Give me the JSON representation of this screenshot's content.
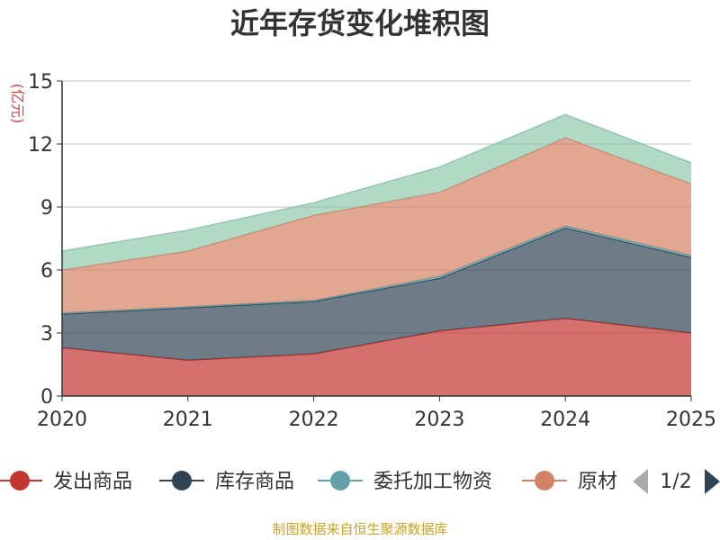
{
  "chart_data": {
    "type": "area",
    "stacked": true,
    "title": "近年存货变化堆积图",
    "unit": "亿元",
    "x": [
      "2020",
      "2021",
      "2022",
      "2023",
      "2024",
      "2025"
    ],
    "ylim": [
      0,
      15
    ],
    "yticks": [
      "0",
      "3",
      "6",
      "9",
      "12",
      "15"
    ],
    "grid": true,
    "legend_position": "bottom",
    "series": [
      {
        "name": "发出商品",
        "color": "#c23531",
        "values": [
          2.3,
          1.7,
          2.0,
          3.1,
          3.7,
          3.0
        ]
      },
      {
        "name": "库存商品",
        "color": "#2f4554",
        "values": [
          1.6,
          2.5,
          2.5,
          2.5,
          4.3,
          3.6
        ]
      },
      {
        "name": "委托加工物资",
        "color": "#61a0a8",
        "values": [
          0.05,
          0.05,
          0.05,
          0.1,
          0.1,
          0.1
        ]
      },
      {
        "name": "原材",
        "color": "#d48265",
        "values": [
          2.05,
          2.65,
          4.05,
          4.0,
          4.2,
          3.4
        ]
      },
      {
        "name": "",
        "color": "#91c7ae",
        "values": [
          0.9,
          1.0,
          0.6,
          1.2,
          1.1,
          1.0
        ]
      }
    ]
  },
  "legend_page": "1/2",
  "source": "制图数据来自恒生聚源数据库"
}
